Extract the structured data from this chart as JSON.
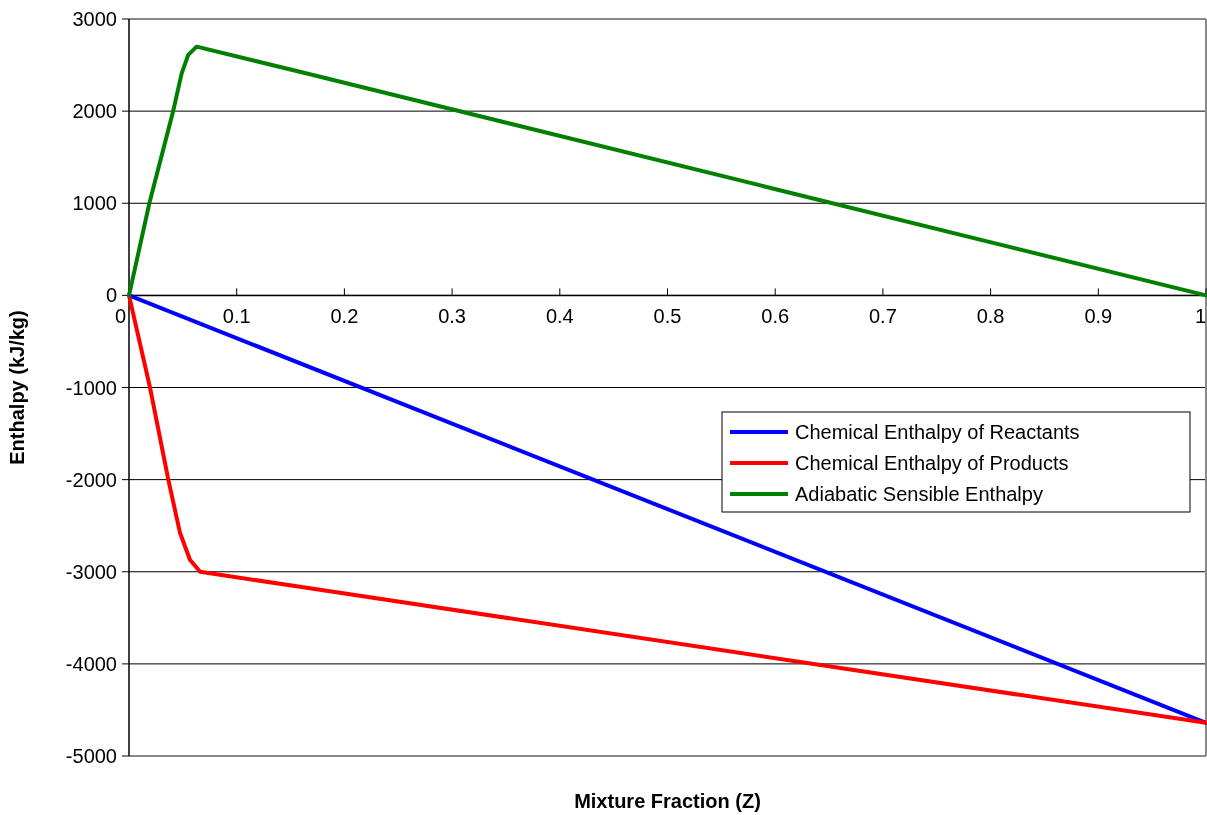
{
  "chart_data": {
    "type": "line",
    "xlabel": "Mixture Fraction (Z)",
    "ylabel": "Enthalpy (kJ/kg)",
    "xlim": [
      0,
      1
    ],
    "ylim": [
      -5000,
      3000
    ],
    "xticks": [
      0,
      0.1,
      0.2,
      0.3,
      0.4,
      0.5,
      0.6,
      0.7,
      0.8,
      0.9,
      1
    ],
    "yticks": [
      -5000,
      -4000,
      -3000,
      -2000,
      -1000,
      0,
      1000,
      2000,
      3000
    ],
    "grid": "y",
    "legend": "right",
    "marker": "none",
    "line_style": "solid",
    "series": [
      {
        "name": "Chemical Enthalpy of Reactants",
        "color": "#0000ff",
        "x": [
          0,
          1
        ],
        "values": [
          0,
          -4640
        ]
      },
      {
        "name": "Chemical Enthalpy of Products",
        "color": "#ff0000",
        "x": [
          0,
          0.0195,
          0.0365,
          0.0474,
          0.0566,
          0.066,
          0.168,
          1
        ],
        "values": [
          0,
          -1000,
          -2000,
          -2580,
          -2870,
          -3000,
          -3180,
          -4640
        ]
      },
      {
        "name": "Adiabatic Sensible Enthalpy",
        "color": "#008000",
        "x": [
          0,
          0.0189,
          0.041,
          0.0489,
          0.055,
          0.0628,
          0.168,
          1
        ],
        "values": [
          0,
          1000,
          2000,
          2410,
          2610,
          2700,
          2400,
          0
        ]
      }
    ]
  }
}
